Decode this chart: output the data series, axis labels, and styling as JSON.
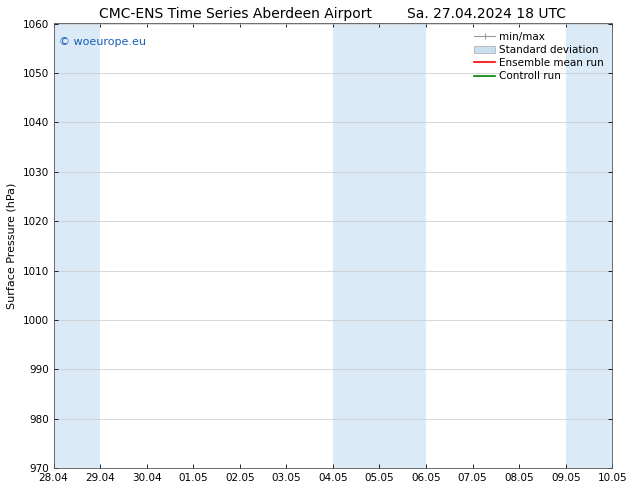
{
  "title_left": "CMC-ENS Time Series Aberdeen Airport",
  "title_right": "Sa. 27.04.2024 18 UTC",
  "ylabel": "Surface Pressure (hPa)",
  "ylim": [
    970,
    1060
  ],
  "yticks": [
    970,
    980,
    990,
    1000,
    1010,
    1020,
    1030,
    1040,
    1050,
    1060
  ],
  "xtick_labels": [
    "28.04",
    "29.04",
    "30.04",
    "01.05",
    "02.05",
    "03.05",
    "04.05",
    "05.05",
    "06.05",
    "07.05",
    "08.05",
    "09.05",
    "10.05"
  ],
  "xtick_positions": [
    0,
    1,
    2,
    3,
    4,
    5,
    6,
    7,
    8,
    9,
    10,
    11,
    12
  ],
  "shaded_bands": [
    {
      "xmin": 0,
      "xmax": 1,
      "color": "#daeaf7"
    },
    {
      "xmin": 6,
      "xmax": 8,
      "color": "#daeaf7"
    },
    {
      "xmin": 11,
      "xmax": 12,
      "color": "#daeaf7"
    }
  ],
  "background_color": "#ffffff",
  "plot_bg_color": "#ffffff",
  "grid_color": "#c8c8c8",
  "watermark_text": "© woeurope.eu",
  "watermark_color": "#1a5eb8",
  "legend_entries": [
    {
      "label": "min/max",
      "color": "#aaaaaa",
      "style": "errorbar"
    },
    {
      "label": "Standard deviation",
      "color": "#c8dff0",
      "style": "rect"
    },
    {
      "label": "Ensemble mean run",
      "color": "#ff0000",
      "style": "line"
    },
    {
      "label": "Controll run",
      "color": "#008000",
      "style": "line"
    }
  ],
  "title_fontsize": 10,
  "axis_label_fontsize": 8,
  "tick_fontsize": 7.5,
  "legend_fontsize": 7.5,
  "watermark_fontsize": 8
}
